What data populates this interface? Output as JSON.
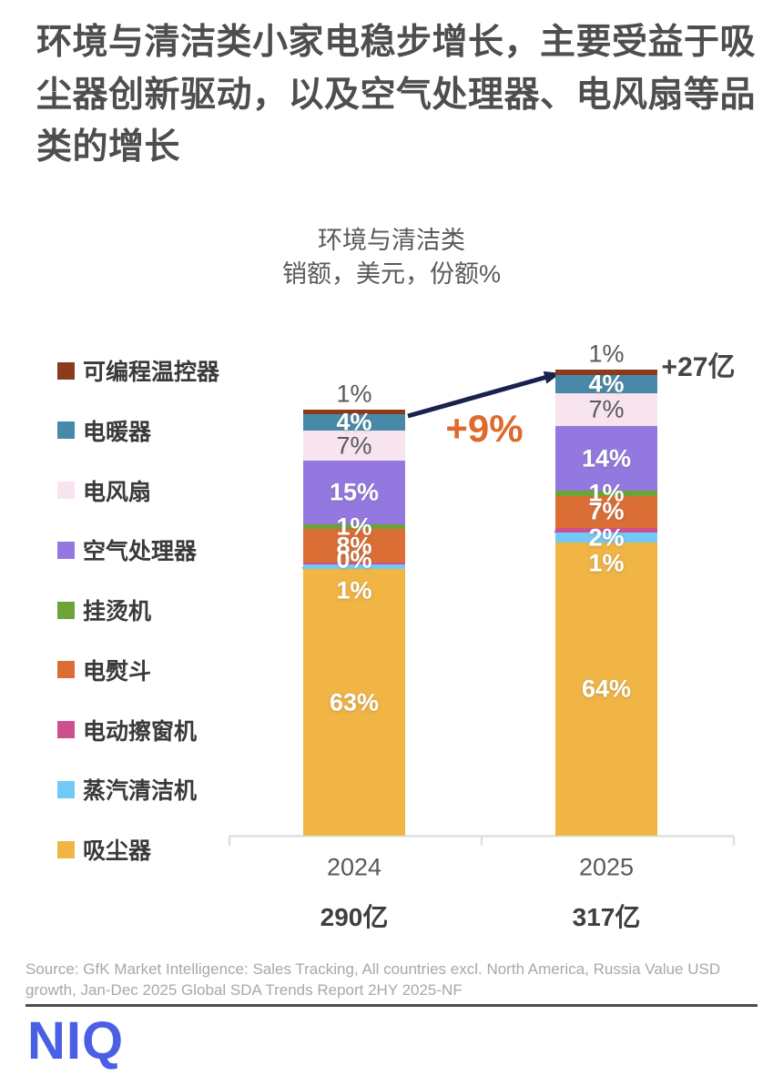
{
  "title": "环境与清洁类小家电稳步增长，主要受益于吸尘器创新驱动，以及空气处理器、电风扇等品类的增长",
  "subtitle": {
    "line1": "环境与清洁类",
    "line2": "销额，美元，份额%"
  },
  "chart_data": {
    "type": "bar",
    "stacked": true,
    "categories": [
      "2024",
      "2025"
    ],
    "totals_display": [
      "290亿",
      "317亿"
    ],
    "totals_value": [
      290,
      317
    ],
    "value_unit": "亿美元",
    "share_unit": "份额%",
    "growth_label": "+9%",
    "delta_label": "+27亿",
    "legend_position": "left",
    "series_top_to_bottom": [
      {
        "name": "可编程温控器",
        "color": "#8b3a1b",
        "values": [
          1,
          1
        ],
        "labels": [
          "1%",
          "1%"
        ],
        "label_color": "gray",
        "label_position": "above"
      },
      {
        "name": "电暖器",
        "color": "#4889a9",
        "values": [
          4,
          4
        ],
        "labels": [
          "4%",
          "4%"
        ],
        "label_color": "white",
        "label_position": "inside"
      },
      {
        "name": "电风扇",
        "color": "#f7e4ee",
        "values": [
          7,
          7
        ],
        "labels": [
          "7%",
          "7%"
        ],
        "label_color": "gray",
        "label_position": "inside"
      },
      {
        "name": "空气处理器",
        "color": "#9379df",
        "values": [
          15,
          14
        ],
        "labels": [
          "15%",
          "14%"
        ],
        "label_color": "white",
        "label_position": "inside"
      },
      {
        "name": "挂烫机",
        "color": "#6ca437",
        "values": [
          1,
          1
        ],
        "labels": [
          "1%",
          "1%"
        ],
        "label_color": "white",
        "label_position": "inside"
      },
      {
        "name": "电熨斗",
        "color": "#db6e35",
        "values": [
          8,
          7
        ],
        "labels": [
          "8%",
          "7%"
        ],
        "label_color": "white",
        "label_position": "inside"
      },
      {
        "name": "电动擦窗机",
        "color": "#cc5090",
        "values": [
          0,
          1
        ],
        "labels": [
          "0%",
          "1%"
        ],
        "label_color": "white",
        "label_position": "inside"
      },
      {
        "name": "蒸汽清洁机",
        "color": "#73c9f5",
        "values": [
          1,
          2
        ],
        "labels": [
          "1%",
          "2%"
        ],
        "label_color": "white",
        "label_position": "inside"
      },
      {
        "name": "吸尘器",
        "color": "#f0b545",
        "values": [
          63,
          64
        ],
        "labels": [
          "63%",
          "64%"
        ],
        "label_color": "white",
        "label_position": "inside"
      }
    ]
  },
  "accents": {
    "arrow_color": "#19214f",
    "growth_color": "#de6a2e",
    "axis_color": "#e0e0e0",
    "callout_color": "#c0c0c0",
    "logo_color": "#4a5fe4"
  },
  "source": "Source: GfK Market Intelligence: Sales Tracking, All countries excl. North America, Russia Value USD growth, Jan-Dec 2025 Global SDA Trends Report 2HY 2025-NF",
  "logo_text": "NIQ"
}
